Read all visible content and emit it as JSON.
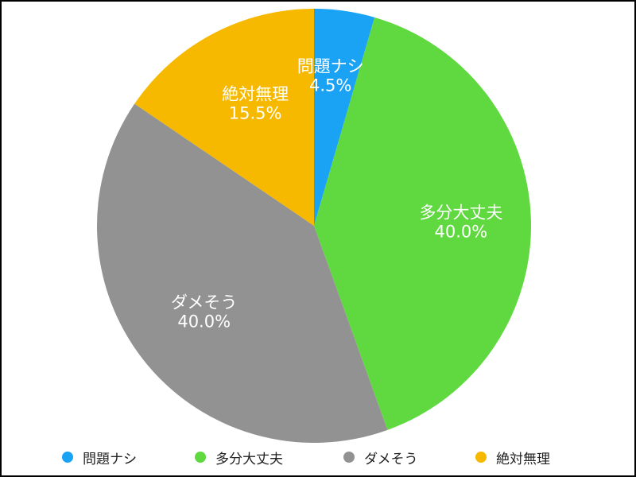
{
  "chart_data": {
    "type": "pie",
    "categories": [
      "問題ナシ",
      "多分大丈夫",
      "ダメそう",
      "絶対無理"
    ],
    "values": [
      4.5,
      40.0,
      40.0,
      15.5
    ],
    "value_labels": [
      "4.5%",
      "40.0%",
      "40.0%",
      "15.5%"
    ],
    "colors": [
      "#1aa3f5",
      "#5fd93f",
      "#929292",
      "#f7b900"
    ],
    "start_angle": "12 o'clock",
    "direction": "clockwise",
    "legend_position": "bottom"
  }
}
